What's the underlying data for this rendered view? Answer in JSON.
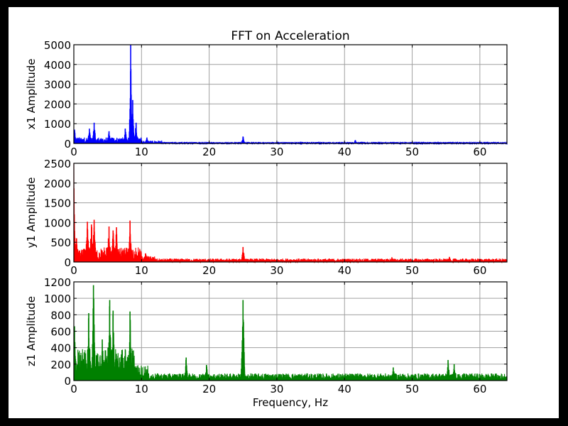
{
  "figure": {
    "title": "FFT on Acceleration",
    "xlabel": "Frequency, Hz",
    "background": "#000000",
    "canvas": "#ffffff"
  },
  "chart_data": {
    "type": "line",
    "title": "FFT on Acceleration",
    "xlabel": "Frequency, Hz",
    "xlim": [
      0,
      64
    ],
    "x_ticks": [
      0,
      10,
      20,
      30,
      40,
      50,
      60
    ],
    "grid": true,
    "legend": null,
    "layout": "3 vertically stacked subplots sharing x-axis",
    "subplots": [
      {
        "name": "x1",
        "ylabel": "x1 Amplitude",
        "color": "#0000ff",
        "ylim": [
          0,
          5000
        ],
        "y_ticks": [
          0,
          1000,
          2000,
          3000,
          4000,
          5000
        ],
        "baseline_noise": [
          {
            "from": 0,
            "to": 10,
            "level": 250
          },
          {
            "from": 10,
            "to": 13,
            "level": 120
          },
          {
            "from": 13,
            "to": 64,
            "level": 60
          }
        ],
        "peaks": [
          {
            "x": 0.1,
            "value": 700
          },
          {
            "x": 2.3,
            "value": 750
          },
          {
            "x": 3.0,
            "value": 1050
          },
          {
            "x": 5.2,
            "value": 620
          },
          {
            "x": 7.6,
            "value": 750
          },
          {
            "x": 8.4,
            "value": 5000
          },
          {
            "x": 8.7,
            "value": 2200
          },
          {
            "x": 9.2,
            "value": 1050
          },
          {
            "x": 10.8,
            "value": 300
          },
          {
            "x": 25.0,
            "value": 350
          },
          {
            "x": 41.6,
            "value": 170
          }
        ]
      },
      {
        "name": "y1",
        "ylabel": "y1 Amplitude",
        "color": "#ff0000",
        "ylim": [
          0,
          2500
        ],
        "y_ticks": [
          0,
          500,
          1000,
          1500,
          2000,
          2500
        ],
        "baseline_noise": [
          {
            "from": 0,
            "to": 10,
            "level": 300
          },
          {
            "from": 10,
            "to": 12,
            "level": 120
          },
          {
            "from": 12,
            "to": 64,
            "level": 70
          }
        ],
        "peaks": [
          {
            "x": 0.0,
            "value": 2500
          },
          {
            "x": 0.4,
            "value": 600
          },
          {
            "x": 2.0,
            "value": 1020
          },
          {
            "x": 2.6,
            "value": 950
          },
          {
            "x": 3.0,
            "value": 1070
          },
          {
            "x": 5.2,
            "value": 900
          },
          {
            "x": 5.8,
            "value": 800
          },
          {
            "x": 6.3,
            "value": 880
          },
          {
            "x": 8.3,
            "value": 1050
          },
          {
            "x": 10.6,
            "value": 220
          },
          {
            "x": 25.0,
            "value": 380
          },
          {
            "x": 47.0,
            "value": 120
          },
          {
            "x": 55.5,
            "value": 130
          }
        ]
      },
      {
        "name": "z1",
        "ylabel": "z1 Amplitude",
        "color": "#008000",
        "ylim": [
          0,
          1200
        ],
        "y_ticks": [
          0,
          200,
          400,
          600,
          800,
          1000,
          1200
        ],
        "baseline_noise": [
          {
            "from": 0,
            "to": 9,
            "level": 320
          },
          {
            "from": 9,
            "to": 11,
            "level": 150
          },
          {
            "from": 11,
            "to": 64,
            "level": 70
          }
        ],
        "peaks": [
          {
            "x": 0.1,
            "value": 660
          },
          {
            "x": 2.2,
            "value": 820
          },
          {
            "x": 2.9,
            "value": 1160
          },
          {
            "x": 4.2,
            "value": 500
          },
          {
            "x": 5.3,
            "value": 980
          },
          {
            "x": 5.8,
            "value": 850
          },
          {
            "x": 8.3,
            "value": 840
          },
          {
            "x": 16.6,
            "value": 280
          },
          {
            "x": 19.6,
            "value": 190
          },
          {
            "x": 25.0,
            "value": 980
          },
          {
            "x": 47.2,
            "value": 160
          },
          {
            "x": 55.3,
            "value": 250
          },
          {
            "x": 56.2,
            "value": 200
          }
        ]
      }
    ]
  }
}
